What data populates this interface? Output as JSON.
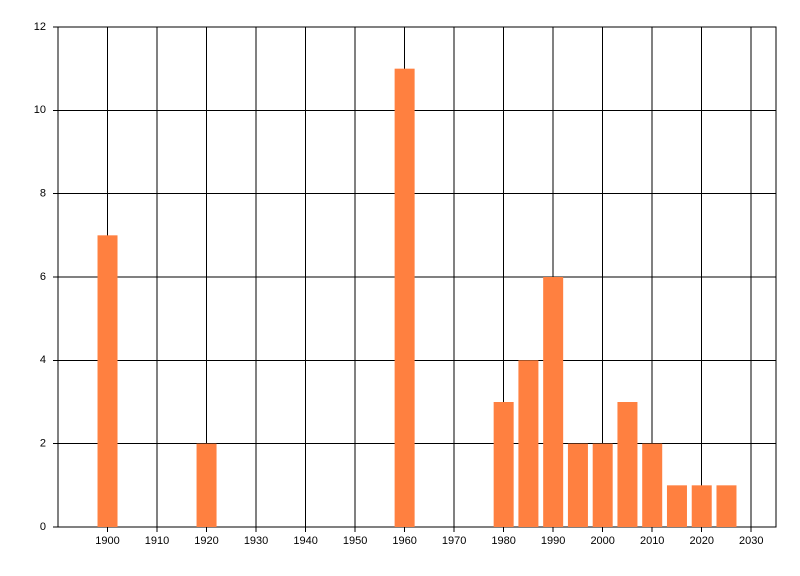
{
  "chart_data": {
    "type": "bar",
    "x": [
      1900,
      1920,
      1960,
      1980,
      1985,
      1990,
      1995,
      2000,
      2005,
      2010,
      2015,
      2020,
      2025
    ],
    "values": [
      7,
      2,
      11,
      3,
      4,
      6,
      2,
      2,
      3,
      2,
      1,
      1,
      1
    ],
    "color": "#ff8040",
    "xlim": [
      1890,
      2035
    ],
    "xticks": [
      1900,
      1910,
      1920,
      1930,
      1940,
      1950,
      1960,
      1970,
      1980,
      1990,
      2000,
      2010,
      2020,
      2030
    ],
    "ylim": [
      0,
      12
    ],
    "yticks": [
      0,
      2,
      4,
      6,
      8,
      10,
      12
    ],
    "grid": true
  }
}
